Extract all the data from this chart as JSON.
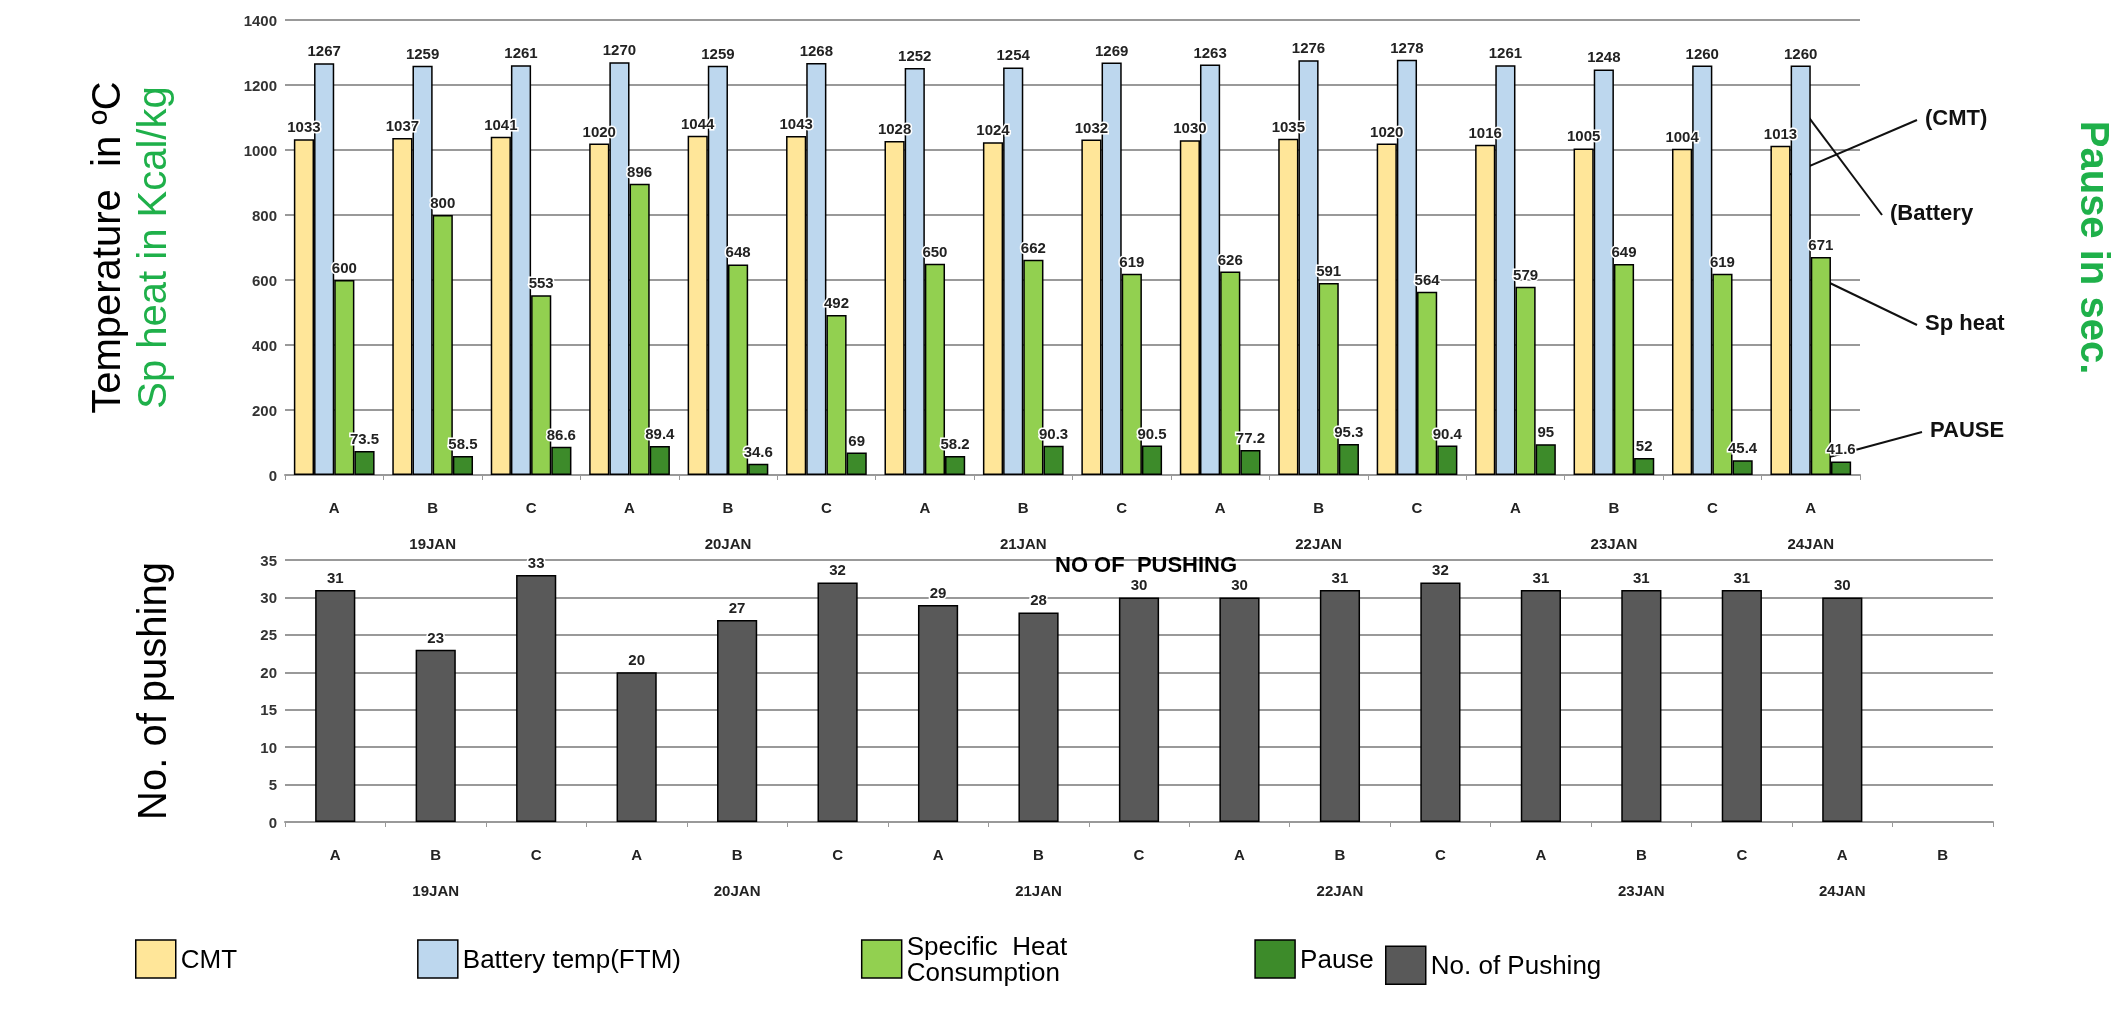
{
  "chart_data": [
    {
      "type": "bar",
      "ylabel": "Temperature  in ºC\nSp heat in Kcal/kg",
      "y2label": "Pause in sec.",
      "categories": [
        "A",
        "B\n19JAN",
        "C",
        "A",
        "B\n20JAN",
        "C",
        "A",
        "B\n21JAN",
        "C",
        "A",
        "B\n22JAN",
        "C",
        "A",
        "B\n23JAN",
        "C",
        "A\n24JAN"
      ],
      "series": [
        {
          "name": "CMT",
          "color": "#ffe699",
          "values": [
            1033,
            1037,
            1041,
            1020,
            1044,
            1043,
            1028,
            1024,
            1032,
            1030,
            1035,
            1020,
            1016,
            1005,
            1004,
            1013
          ]
        },
        {
          "name": "Battery temp(FTM)",
          "color": "#bdd7ee",
          "values": [
            1267,
            1259,
            1261,
            1270,
            1259,
            1268,
            1252,
            1254,
            1269,
            1263,
            1276,
            1278,
            1261,
            1248,
            1260,
            1260
          ]
        },
        {
          "name": "Specific  Heat Consumption",
          "color": "#92d050",
          "values": [
            600,
            800,
            553,
            896,
            648,
            492,
            650,
            662,
            619,
            626,
            591,
            564,
            579,
            649,
            619,
            671
          ]
        },
        {
          "name": "Pause",
          "color": "#3d8b2a",
          "values": [
            73.5,
            58.5,
            86.6,
            89.4,
            34.6,
            69,
            58.2,
            90.3,
            90.5,
            77.2,
            95.3,
            90.4,
            95,
            52,
            45.4,
            41.6
          ]
        }
      ],
      "ylim": [
        0,
        1400
      ],
      "yticks": [
        0,
        200,
        400,
        600,
        800,
        1000,
        1200,
        1400
      ],
      "grid": "y",
      "data_labels": true,
      "legend": "bottom",
      "annotations": [
        "(CMT)",
        "(Battery",
        "Sp heat",
        {
          "text": "PAUSE",
          "x": "A\n24JAN",
          "y": 40
        }
      ]
    },
    {
      "type": "bar",
      "title": "NO OF  PUSHING",
      "ylabel": "No. of pushing",
      "categories": [
        "A",
        "B\n19JAN",
        "C",
        "A",
        "B\n20JAN",
        "C",
        "A",
        "B\n21JAN",
        "C",
        "A",
        "B\n22JAN",
        "C",
        "A",
        "B\n23JAN",
        "C",
        "A\n24JAN",
        "B"
      ],
      "series": [
        {
          "name": "No. of Pushing",
          "color": "#595959",
          "values": [
            31,
            23,
            33,
            20,
            27,
            32,
            29,
            28,
            30,
            30,
            31,
            32,
            31,
            31,
            31,
            30,
            null
          ]
        }
      ],
      "ylim": [
        0,
        35
      ],
      "yticks": [
        0,
        5,
        10,
        15,
        20,
        25,
        30,
        35
      ],
      "grid": "y",
      "data_labels": true,
      "legend": "bottom"
    }
  ]
}
